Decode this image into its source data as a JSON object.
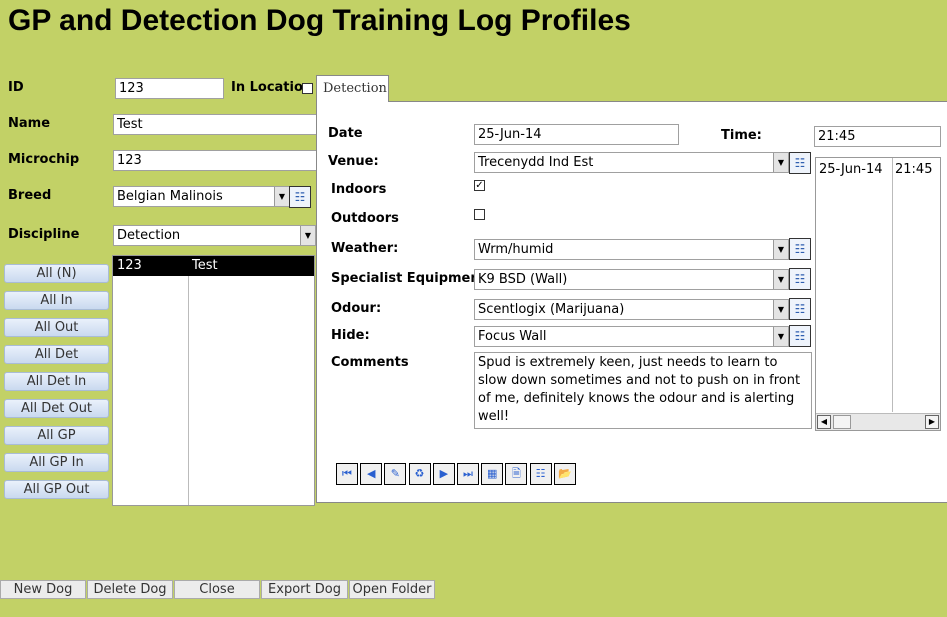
{
  "title": "GP and Detection Dog Training Log Profiles",
  "profile": {
    "id_label": "ID",
    "id_value": "123",
    "in_location_label": "In Location",
    "in_location_checked": false,
    "name_label": "Name",
    "name_value": "Test",
    "microchip_label": "Microchip",
    "microchip_value": "123",
    "breed_label": "Breed",
    "breed_value": "Belgian Malinois",
    "discipline_label": "Discipline",
    "discipline_value": "Detection"
  },
  "filter_buttons": [
    "All (N)",
    "All In",
    "All Out",
    "All Det",
    "All Det In",
    "All Det Out",
    "All GP",
    "All GP In",
    "All GP Out"
  ],
  "dog_list": [
    {
      "id": "123",
      "name": "Test"
    }
  ],
  "tab": {
    "label": "Detection"
  },
  "detection": {
    "date_label": "Date",
    "date_value": "25-Jun-14",
    "time_label": "Time:",
    "time_value": "21:45",
    "venue_label": "Venue:",
    "venue_value": "Trecenydd Ind Est",
    "indoors_label": "Indoors",
    "indoors_checked": true,
    "outdoors_label": "Outdoors",
    "outdoors_checked": false,
    "weather_label": "Weather:",
    "weather_value": "Wrm/humid",
    "equipment_label": "Specialist Equipment:",
    "equipment_value": "K9 BSD (Wall)",
    "odour_label": "Odour:",
    "odour_value": "Scentlogix (Marijuana)",
    "hide_label": "Hide:",
    "hide_value": "Focus Wall",
    "comments_label": "Comments",
    "comments_value": "Spud is extremely keen, just needs to learn to slow down sometimes and not to push on in front of me, definitely knows the odour and is alerting well!"
  },
  "session_list": [
    {
      "date": "25-Jun-14",
      "time": "21:45"
    }
  ],
  "record_nav_icons": [
    "first-record",
    "previous-record",
    "edit",
    "delete",
    "next-record",
    "last-record",
    "export",
    "report",
    "form-view",
    "open-folder"
  ],
  "bottom_buttons": [
    "New Dog",
    "Delete Dog",
    "Close",
    "Export Dog",
    "Open Folder"
  ]
}
